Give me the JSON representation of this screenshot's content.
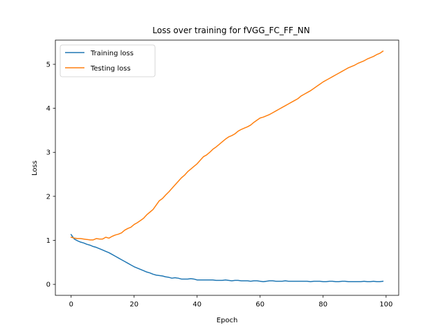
{
  "chart_data": {
    "type": "line",
    "title": "Loss over training for fVGG_FC_FF_NN",
    "xlabel": "Epoch",
    "ylabel": "Loss",
    "xlim": [
      -5,
      104
    ],
    "ylim": [
      -0.25,
      5.55
    ],
    "xticks": [
      0,
      20,
      40,
      60,
      80,
      100
    ],
    "yticks": [
      0,
      1,
      2,
      3,
      4,
      5
    ],
    "grid": false,
    "legend": "top-left",
    "series": [
      {
        "name": "Training loss",
        "color": "#1f77b4",
        "values": [
          1.13,
          1.03,
          0.99,
          0.96,
          0.94,
          0.91,
          0.89,
          0.86,
          0.84,
          0.81,
          0.78,
          0.75,
          0.72,
          0.68,
          0.64,
          0.6,
          0.56,
          0.52,
          0.48,
          0.44,
          0.4,
          0.37,
          0.34,
          0.31,
          0.28,
          0.26,
          0.23,
          0.21,
          0.2,
          0.19,
          0.17,
          0.16,
          0.14,
          0.15,
          0.14,
          0.12,
          0.12,
          0.12,
          0.13,
          0.12,
          0.1,
          0.1,
          0.1,
          0.1,
          0.1,
          0.1,
          0.09,
          0.09,
          0.09,
          0.1,
          0.09,
          0.08,
          0.09,
          0.09,
          0.08,
          0.08,
          0.08,
          0.07,
          0.08,
          0.08,
          0.07,
          0.06,
          0.07,
          0.08,
          0.08,
          0.07,
          0.07,
          0.07,
          0.08,
          0.07,
          0.07,
          0.07,
          0.07,
          0.07,
          0.07,
          0.07,
          0.06,
          0.07,
          0.07,
          0.07,
          0.06,
          0.06,
          0.07,
          0.07,
          0.06,
          0.06,
          0.07,
          0.07,
          0.06,
          0.06,
          0.06,
          0.06,
          0.06,
          0.07,
          0.06,
          0.06,
          0.07,
          0.06,
          0.06,
          0.07
        ]
      },
      {
        "name": "Testing loss",
        "color": "#ff7f0e",
        "values": [
          1.07,
          1.05,
          1.04,
          1.04,
          1.03,
          1.02,
          1.01,
          1.01,
          1.04,
          1.03,
          1.03,
          1.07,
          1.05,
          1.09,
          1.12,
          1.14,
          1.17,
          1.23,
          1.27,
          1.3,
          1.36,
          1.4,
          1.45,
          1.5,
          1.58,
          1.64,
          1.7,
          1.8,
          1.9,
          1.95,
          2.03,
          2.1,
          2.18,
          2.26,
          2.34,
          2.42,
          2.48,
          2.56,
          2.62,
          2.68,
          2.74,
          2.82,
          2.9,
          2.94,
          3.0,
          3.07,
          3.12,
          3.18,
          3.24,
          3.3,
          3.35,
          3.38,
          3.42,
          3.48,
          3.52,
          3.55,
          3.58,
          3.62,
          3.68,
          3.73,
          3.78,
          3.8,
          3.83,
          3.86,
          3.9,
          3.94,
          3.98,
          4.02,
          4.06,
          4.1,
          4.14,
          4.18,
          4.22,
          4.28,
          4.32,
          4.36,
          4.4,
          4.45,
          4.5,
          4.55,
          4.6,
          4.64,
          4.68,
          4.72,
          4.76,
          4.8,
          4.84,
          4.88,
          4.92,
          4.95,
          4.98,
          5.02,
          5.05,
          5.08,
          5.12,
          5.15,
          5.18,
          5.22,
          5.25,
          5.3
        ]
      }
    ]
  }
}
